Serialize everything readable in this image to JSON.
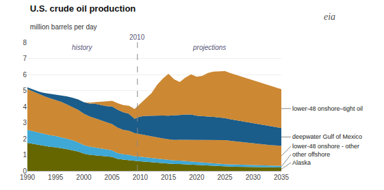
{
  "chart_data": {
    "type": "area",
    "stacked": true,
    "title": "U.S. crude oil production",
    "subtitle": "million barrels per day",
    "x": [
      1990,
      1991,
      1992,
      1993,
      1994,
      1995,
      1996,
      1997,
      1998,
      1999,
      2000,
      2001,
      2002,
      2003,
      2004,
      2005,
      2006,
      2007,
      2008,
      2009,
      2010,
      2011,
      2012,
      2013,
      2014,
      2015,
      2016,
      2017,
      2018,
      2019,
      2020,
      2021,
      2022,
      2023,
      2024,
      2025,
      2026,
      2027,
      2028,
      2029,
      2030,
      2031,
      2032,
      2033,
      2034,
      2035
    ],
    "series": [
      {
        "name": "Alaska",
        "color": "#666600",
        "values": [
          1.75,
          1.68,
          1.61,
          1.55,
          1.5,
          1.47,
          1.42,
          1.35,
          1.28,
          1.2,
          1.07,
          1.0,
          0.97,
          0.95,
          0.9,
          0.87,
          0.75,
          0.7,
          0.68,
          0.63,
          0.6,
          0.57,
          0.54,
          0.52,
          0.5,
          0.48,
          0.43,
          0.43,
          0.41,
          0.39,
          0.36,
          0.34,
          0.33,
          0.31,
          0.29,
          0.28,
          0.27,
          0.26,
          0.25,
          0.25,
          0.24,
          0.23,
          0.23,
          0.22,
          0.22,
          0.21
        ]
      },
      {
        "name": "other offshore",
        "color": "#3fa8d5",
        "values": [
          0.8,
          0.78,
          0.76,
          0.74,
          0.72,
          0.7,
          0.68,
          0.65,
          0.62,
          0.58,
          0.54,
          0.51,
          0.49,
          0.46,
          0.43,
          0.41,
          0.36,
          0.33,
          0.32,
          0.28,
          0.28,
          0.27,
          0.26,
          0.25,
          0.24,
          0.23,
          0.22,
          0.21,
          0.2,
          0.19,
          0.18,
          0.17,
          0.16,
          0.15,
          0.14,
          0.14,
          0.13,
          0.13,
          0.12,
          0.12,
          0.12,
          0.11,
          0.11,
          0.11,
          0.1,
          0.1
        ]
      },
      {
        "name": "lower-48 onshore - other",
        "color": "#cc8833",
        "values": [
          2.55,
          2.48,
          2.42,
          2.36,
          2.3,
          2.25,
          2.2,
          2.14,
          2.08,
          2.02,
          1.95,
          1.88,
          1.82,
          1.76,
          1.7,
          1.63,
          1.58,
          1.52,
          1.5,
          1.44,
          1.4,
          1.37,
          1.34,
          1.31,
          1.28,
          1.26,
          1.28,
          1.3,
          1.33,
          1.36,
          1.38,
          1.42,
          1.45,
          1.48,
          1.5,
          1.5,
          1.47,
          1.44,
          1.41,
          1.38,
          1.35,
          1.33,
          1.31,
          1.28,
          1.26,
          1.24
        ]
      },
      {
        "name": "deepwater Gulf of Mexico",
        "color": "#1a5c8a",
        "values": [
          0.1,
          0.12,
          0.15,
          0.2,
          0.28,
          0.35,
          0.42,
          0.5,
          0.57,
          0.65,
          0.72,
          0.8,
          0.9,
          0.95,
          1.0,
          1.1,
          1.12,
          1.1,
          1.05,
          0.9,
          1.1,
          1.22,
          1.3,
          1.38,
          1.43,
          1.47,
          1.52,
          1.54,
          1.57,
          1.57,
          1.52,
          1.47,
          1.44,
          1.42,
          1.4,
          1.37,
          1.34,
          1.32,
          1.3,
          1.27,
          1.24,
          1.22,
          1.2,
          1.17,
          1.14,
          1.12
        ]
      },
      {
        "name": "lower-48 onshore–tight oil",
        "color": "#cc8833",
        "values": [
          0.0,
          0.0,
          0.0,
          0.0,
          0.0,
          0.0,
          0.0,
          0.0,
          0.0,
          0.0,
          0.0,
          0.05,
          0.1,
          0.2,
          0.3,
          0.35,
          0.4,
          0.45,
          0.5,
          0.6,
          0.8,
          1.05,
          1.4,
          1.9,
          2.3,
          2.6,
          2.25,
          2.05,
          2.3,
          2.5,
          2.42,
          2.52,
          2.72,
          2.82,
          2.87,
          2.92,
          2.87,
          2.82,
          2.77,
          2.72,
          2.67,
          2.62,
          2.57,
          2.52,
          2.47,
          2.42
        ]
      }
    ],
    "xlim": [
      1990,
      2035
    ],
    "ylim": [
      0,
      8
    ],
    "xticks": [
      1990,
      1995,
      2000,
      2005,
      2010,
      2015,
      2020,
      2025,
      2030,
      2035
    ],
    "yticks": [
      0,
      1,
      2,
      3,
      4,
      5,
      6,
      7,
      8
    ],
    "grid": true,
    "vline": 2009.5,
    "annotations": [
      "history",
      "2010",
      "projections",
      "eia"
    ]
  }
}
